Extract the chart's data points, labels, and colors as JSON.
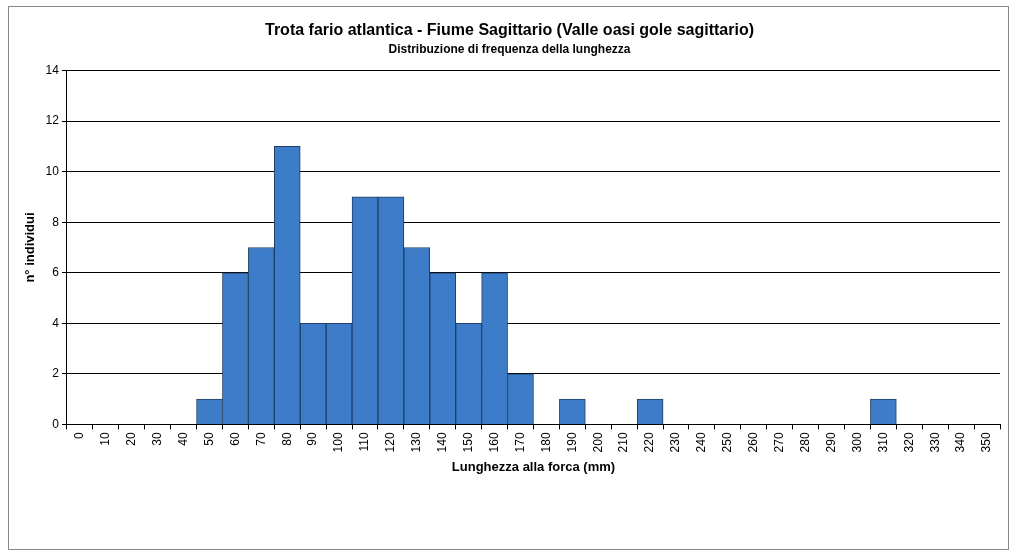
{
  "chart_data": {
    "type": "bar",
    "title": "Trota fario atlantica - Fiume Sagittario (Valle oasi gole sagittario)",
    "subtitle": "Distribuzione di frequenza della lunghezza",
    "xlabel": "Lunghezza alla forca (mm)",
    "ylabel": "n° individui",
    "categories": [
      "0",
      "10",
      "20",
      "30",
      "40",
      "50",
      "60",
      "70",
      "80",
      "90",
      "100",
      "110",
      "120",
      "130",
      "140",
      "150",
      "160",
      "170",
      "180",
      "190",
      "200",
      "210",
      "220",
      "230",
      "240",
      "250",
      "260",
      "270",
      "280",
      "290",
      "300",
      "310",
      "320",
      "330",
      "340",
      "350"
    ],
    "values": [
      0,
      0,
      0,
      0,
      0,
      1,
      6,
      7,
      11,
      4,
      4,
      9,
      9,
      7,
      6,
      4,
      6,
      2,
      0,
      1,
      0,
      0,
      1,
      0,
      0,
      0,
      0,
      0,
      0,
      0,
      0,
      1,
      0,
      0,
      0,
      0
    ],
    "color": "#3d7cc9",
    "ylim": [
      0,
      14
    ],
    "yticks": [
      0,
      2,
      4,
      6,
      8,
      10,
      12,
      14
    ],
    "grid": "y",
    "legend": false
  }
}
